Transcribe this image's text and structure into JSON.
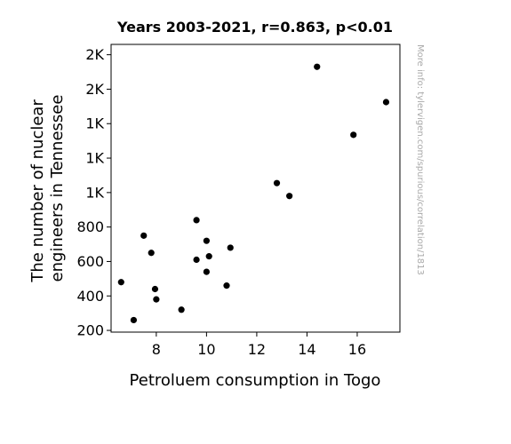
{
  "chart_data": {
    "type": "scatter",
    "title": "Years 2003-2021, r=0.863, p<0.01",
    "xlabel": "Petroluem consumption in Togo",
    "ylabel_lines": [
      "The number of nuclear",
      "engineers in Tennessee"
    ],
    "watermark": "More info: tylervigen.com/spurious/correlation/1813",
    "xlim": [
      6.2,
      17.7
    ],
    "ylim": [
      190,
      1860
    ],
    "xticks": [
      8,
      10,
      12,
      14,
      16
    ],
    "xtick_labels": [
      "8",
      "10",
      "12",
      "14",
      "16"
    ],
    "yticks": [
      200,
      400,
      600,
      800,
      1000,
      1200,
      1400,
      1600,
      1800
    ],
    "ytick_labels": [
      "200",
      "400",
      "600",
      "800",
      "1K",
      "1K",
      "1K",
      "2K",
      "2K"
    ],
    "grid": false,
    "marker_color": "#000000",
    "points": [
      {
        "x": 6.6,
        "y": 480
      },
      {
        "x": 7.1,
        "y": 260
      },
      {
        "x": 7.5,
        "y": 750
      },
      {
        "x": 7.8,
        "y": 650
      },
      {
        "x": 7.95,
        "y": 440
      },
      {
        "x": 8.0,
        "y": 380
      },
      {
        "x": 9.0,
        "y": 320
      },
      {
        "x": 9.6,
        "y": 840
      },
      {
        "x": 9.6,
        "y": 610
      },
      {
        "x": 10.0,
        "y": 720
      },
      {
        "x": 10.0,
        "y": 540
      },
      {
        "x": 10.1,
        "y": 630
      },
      {
        "x": 10.8,
        "y": 460
      },
      {
        "x": 10.95,
        "y": 680
      },
      {
        "x": 12.8,
        "y": 1055
      },
      {
        "x": 13.3,
        "y": 980
      },
      {
        "x": 14.4,
        "y": 1730
      },
      {
        "x": 15.85,
        "y": 1335
      },
      {
        "x": 17.15,
        "y": 1525
      }
    ]
  }
}
